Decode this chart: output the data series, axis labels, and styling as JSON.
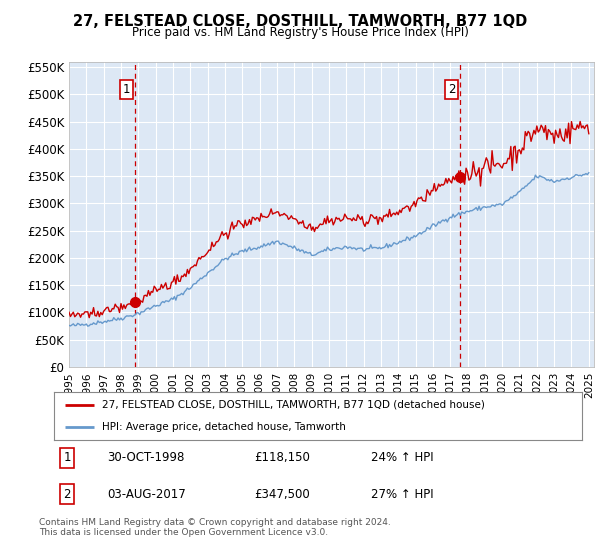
{
  "title": "27, FELSTEAD CLOSE, DOSTHILL, TAMWORTH, B77 1QD",
  "subtitle": "Price paid vs. HM Land Registry's House Price Index (HPI)",
  "legend_line1": "27, FELSTEAD CLOSE, DOSTHILL, TAMWORTH, B77 1QD (detached house)",
  "legend_line2": "HPI: Average price, detached house, Tamworth",
  "annotation1_label": "1",
  "annotation1_date": "30-OCT-1998",
  "annotation1_price": "£118,150",
  "annotation1_hpi": "24% ↑ HPI",
  "annotation2_label": "2",
  "annotation2_date": "03-AUG-2017",
  "annotation2_price": "£347,500",
  "annotation2_hpi": "27% ↑ HPI",
  "footer": "Contains HM Land Registry data © Crown copyright and database right 2024.\nThis data is licensed under the Open Government Licence v3.0.",
  "price_color": "#cc0000",
  "hpi_color": "#6699cc",
  "background_color": "#dde8f5",
  "ylim_min": 0,
  "ylim_max": 560000,
  "yticks": [
    0,
    50000,
    100000,
    150000,
    200000,
    250000,
    300000,
    350000,
    400000,
    450000,
    500000,
    550000
  ],
  "ytick_labels": [
    "£0",
    "£50K",
    "£100K",
    "£150K",
    "£200K",
    "£250K",
    "£300K",
    "£350K",
    "£400K",
    "£450K",
    "£500K",
    "£550K"
  ],
  "sale1_x": 1998.83,
  "sale1_y": 118150,
  "sale2_x": 2017.58,
  "sale2_y": 347500,
  "xmin": 1995.0,
  "xmax": 2025.3
}
